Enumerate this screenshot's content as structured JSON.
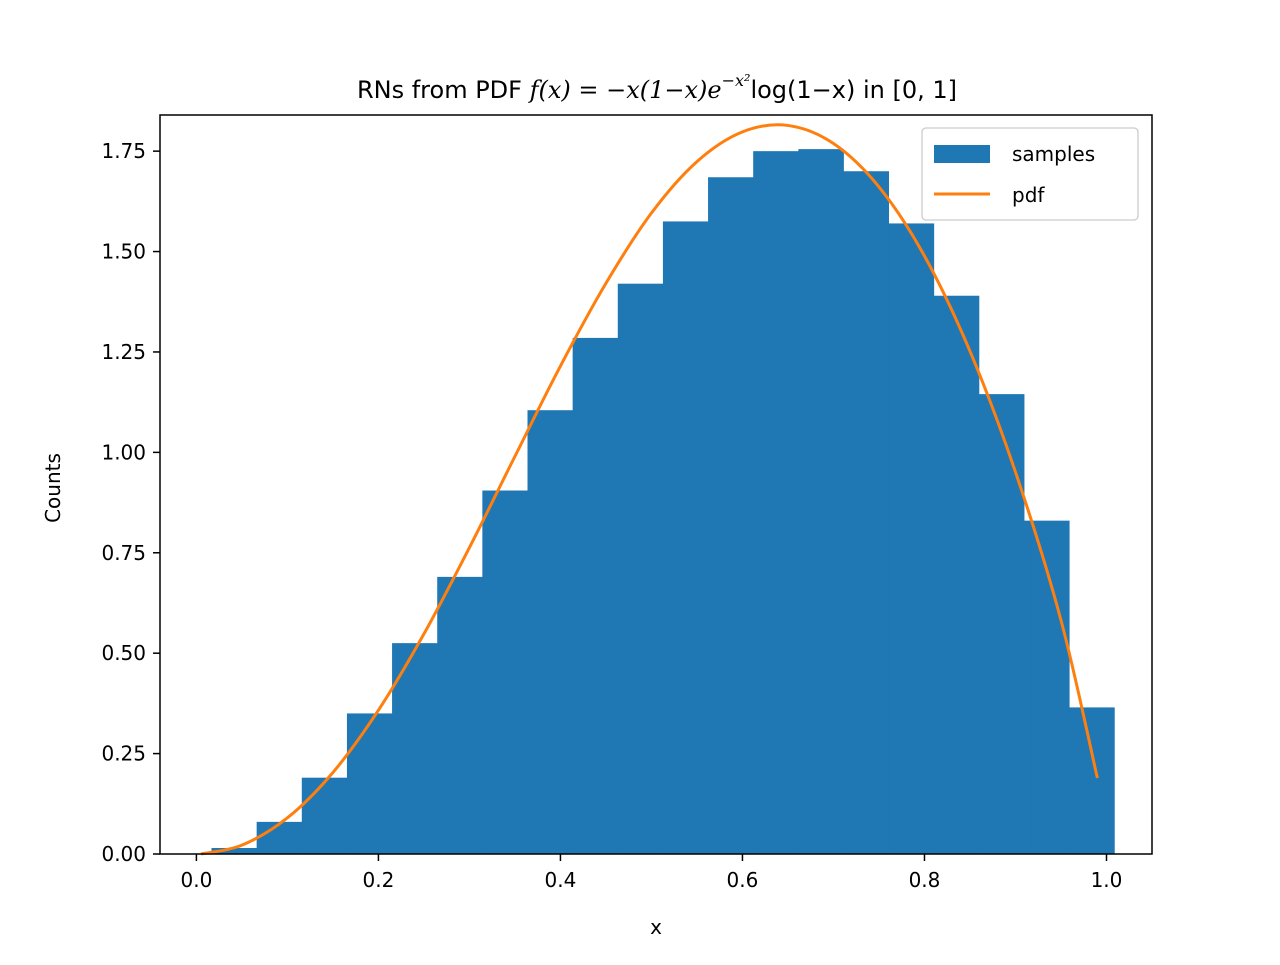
{
  "chart_data": {
    "type": "bar",
    "title": {
      "prefix": "RNs from PDF ",
      "formula_main": "f(x) = −x(1−x)e",
      "formula_sup": "−x²",
      "formula_tail": "log(1−x)",
      "suffix": " in [0, 1]"
    },
    "xlabel": "x",
    "ylabel": "Counts",
    "xlim": [
      -0.04,
      1.05
    ],
    "ylim": [
      0,
      1.84
    ],
    "x_ticks": [
      0.0,
      0.2,
      0.4,
      0.6,
      0.8,
      1.0
    ],
    "x_tick_labels": [
      "0.0",
      "0.2",
      "0.4",
      "0.6",
      "0.8",
      "1.0"
    ],
    "y_ticks": [
      0.0,
      0.25,
      0.5,
      0.75,
      1.0,
      1.25,
      1.5,
      1.75
    ],
    "y_tick_labels": [
      "0.00",
      "0.25",
      "0.50",
      "0.75",
      "1.00",
      "1.25",
      "1.50",
      "1.75"
    ],
    "grid": false,
    "legend_position": "top-right",
    "series": [
      {
        "name": "samples",
        "kind": "histogram",
        "color": "#1f77b4",
        "bin_edges": [
          0.0166,
          0.0662,
          0.1158,
          0.1654,
          0.215,
          0.2646,
          0.3142,
          0.3638,
          0.4134,
          0.463,
          0.5126,
          0.5622,
          0.6118,
          0.6614,
          0.711,
          0.7606,
          0.8102,
          0.8598,
          0.9094,
          0.959,
          1.0086
        ],
        "values": [
          0.015,
          0.08,
          0.19,
          0.35,
          0.525,
          0.69,
          0.905,
          1.105,
          1.285,
          1.42,
          1.575,
          1.685,
          1.75,
          1.755,
          1.7,
          1.57,
          1.39,
          1.145,
          0.83,
          0.365
        ]
      },
      {
        "name": "pdf",
        "kind": "line",
        "color": "#ff7f0e",
        "x": [
          0.005,
          0.05,
          0.1,
          0.15,
          0.2,
          0.25,
          0.3,
          0.35,
          0.4,
          0.45,
          0.5,
          0.55,
          0.6,
          0.65,
          0.7,
          0.75,
          0.8,
          0.85,
          0.9,
          0.95,
          0.99
        ],
        "y": [
          0.0001,
          0.022,
          0.09,
          0.203,
          0.358,
          0.548,
          0.763,
          0.99,
          1.215,
          1.421,
          1.596,
          1.724,
          1.798,
          1.814,
          1.769,
          1.661,
          1.489,
          1.252,
          0.951,
          0.582,
          0.189
        ]
      }
    ]
  }
}
